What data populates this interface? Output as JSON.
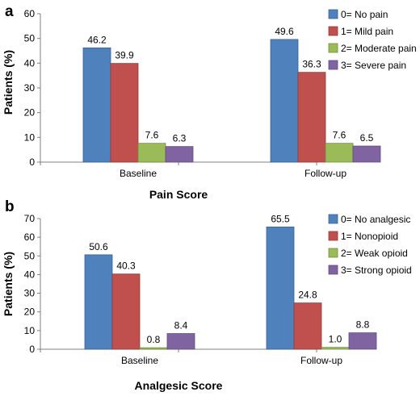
{
  "chart_data": [
    {
      "panel_label": "a",
      "type": "bar",
      "categories": [
        "Baseline",
        "Follow-up"
      ],
      "series": [
        {
          "name": "0= No pain",
          "color": "#4f81bd",
          "values": [
            46.2,
            49.6
          ]
        },
        {
          "name": "1= Mild pain",
          "color": "#c0504d",
          "values": [
            39.9,
            36.3
          ]
        },
        {
          "name": "2= Moderate pain",
          "color": "#9bbb59",
          "values": [
            7.6,
            7.6
          ]
        },
        {
          "name": "3= Severe pain",
          "color": "#8064a2",
          "values": [
            6.3,
            6.5
          ]
        }
      ],
      "xlabel": "Pain Score",
      "ylabel": "Patients (%)",
      "ylim": [
        0,
        60
      ],
      "yticks": [
        0,
        10,
        20,
        30,
        40,
        50,
        60
      ],
      "grid": false,
      "legend": "top-right"
    },
    {
      "panel_label": "b",
      "type": "bar",
      "categories": [
        "Baseline",
        "Follow-up"
      ],
      "series": [
        {
          "name": "0= No analgesic",
          "color": "#4f81bd",
          "values": [
            50.6,
            65.5
          ]
        },
        {
          "name": "1= Nonopioid",
          "color": "#c0504d",
          "values": [
            40.3,
            24.8
          ]
        },
        {
          "name": "2= Weak opioid",
          "color": "#9bbb59",
          "values": [
            0.8,
            1.0
          ]
        },
        {
          "name": "3= Strong opioid",
          "color": "#8064a2",
          "values": [
            8.4,
            8.8
          ]
        }
      ],
      "xlabel": "Analgesic Score",
      "ylabel": "Patients (%)",
      "ylim": [
        0,
        70
      ],
      "yticks": [
        0,
        10,
        20,
        30,
        40,
        50,
        60,
        70
      ],
      "grid": false,
      "legend": "top-right"
    }
  ]
}
